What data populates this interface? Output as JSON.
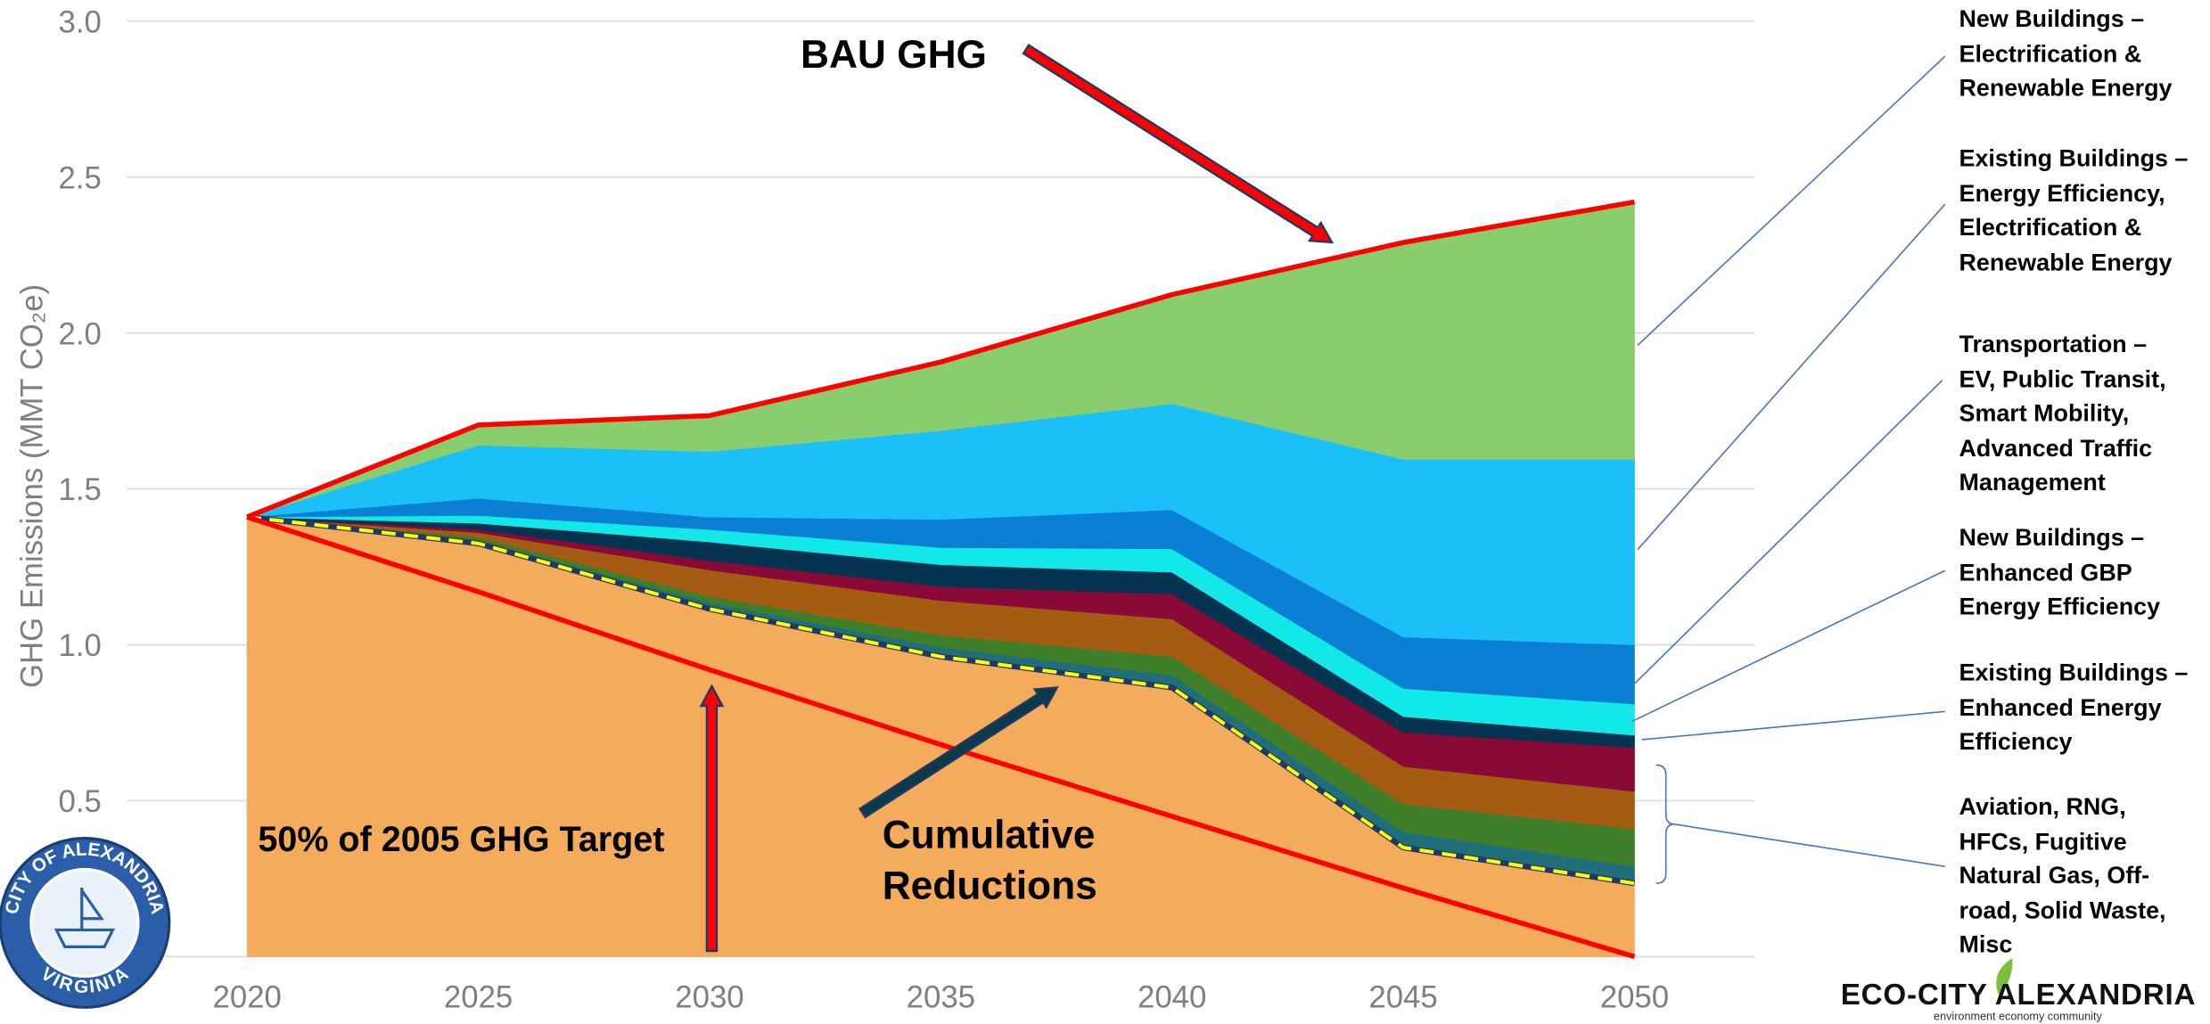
{
  "chart_data": {
    "type": "stacked_area",
    "ylabel": "GHG Emissions (MMT CO₂e)",
    "x": [
      2020,
      2025,
      2030,
      2035,
      2040,
      2045,
      2050
    ],
    "xlim": [
      2017.4,
      2052.6
    ],
    "xticks": [
      2020,
      2025,
      2030,
      2035,
      2040,
      2045,
      2050
    ],
    "ylim": [
      0,
      3
    ],
    "yticks": [
      {
        "value": 0,
        "label": "0.0"
      },
      0.5,
      {
        "value": 1,
        "label": "1.0"
      },
      1.5,
      {
        "value": 2,
        "label": "2.0"
      },
      2.5,
      {
        "value": 3,
        "label": "3.0"
      }
    ],
    "grid": true,
    "series": [
      {
        "color": "#f4ab5c",
        "values": [
          1.41,
          1.325,
          1.115,
          0.962,
          0.863,
          0.35,
          0.235
        ]
      },
      {
        "color": "#1f6e7a",
        "values": [
          0,
          0.01,
          0.02,
          0.03,
          0.04,
          0.05,
          0.055
        ]
      },
      {
        "color": "#3f7f2a",
        "values": [
          0,
          0.01,
          0.02,
          0.04,
          0.06,
          0.09,
          0.12
        ]
      },
      {
        "color": "#a65b12",
        "values": [
          0,
          0.015,
          0.085,
          0.11,
          0.12,
          0.12,
          0.12
        ]
      },
      {
        "color": "#8a0a37",
        "values": [
          0,
          0.01,
          0.03,
          0.045,
          0.08,
          0.11,
          0.14
        ]
      },
      {
        "name": "Existing Buildings –\nEnhanced Energy\nEfficiency",
        "color": "#06334f",
        "values": [
          0,
          0.02,
          0.06,
          0.07,
          0.07,
          0.05,
          0.04
        ]
      },
      {
        "name": "New Buildings –\nEnhanced GBP\nEnergy Efficiency",
        "color": "#12e8e8",
        "values": [
          0,
          0.025,
          0.04,
          0.055,
          0.075,
          0.09,
          0.1
        ]
      },
      {
        "name": "Transportation –\nEV, Public Transit,\nSmart Mobility,\nAdvanced Traffic\nManagement",
        "color": "#0a7fd4",
        "values": [
          0,
          0.055,
          0.04,
          0.09,
          0.125,
          0.165,
          0.19
        ]
      },
      {
        "name": "Existing Buildings –\nEnergy Efficiency,\nElectrification &\nRenewable Energy",
        "color": "#1cc0f8",
        "values": [
          0,
          0.17,
          0.21,
          0.285,
          0.34,
          0.57,
          0.595
        ]
      },
      {
        "name": "New Buildings –\nElectrification &\nRenewable Energy",
        "color": "#88cd6e",
        "values": [
          0,
          0.065,
          0.115,
          0.22,
          0.35,
          0.695,
          0.825
        ]
      }
    ],
    "bracket_label": "Aviation, RNG,\nHFCs, Fugitive\nNatural Gas, Off-\nroad, Solid Waste,\nMisc",
    "bau_color": "#ff0000",
    "target": {
      "color": "#ff0000",
      "values": [
        1.41,
        1.17,
        0.92,
        0.68,
        0.45,
        0.22,
        0
      ]
    },
    "reduction_line_color": "#ffff00",
    "annotations": {
      "bau": "BAU GHG",
      "target": "50% of 2005 GHG Target",
      "cumulative": "Cumulative\nReductions"
    }
  },
  "logos": {
    "seal_top": "CITY OF ALEXANDRIA",
    "seal_bottom": "VIRGINIA",
    "eco_city": "ECO-CITY ALEXANDRIA",
    "tagline": "environment economy community"
  }
}
